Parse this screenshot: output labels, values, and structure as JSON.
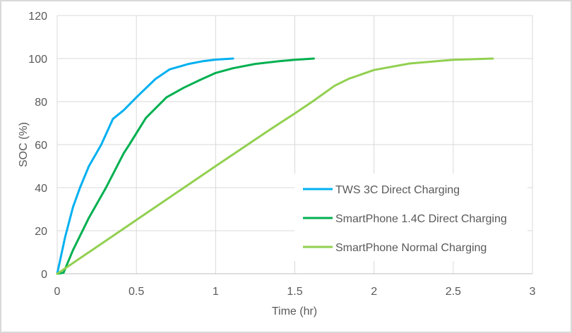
{
  "chart_data": {
    "type": "line",
    "title": "",
    "xlabel": "Time (hr)",
    "ylabel": "SOC (%)",
    "xlim": [
      0,
      3
    ],
    "ylim": [
      0,
      120
    ],
    "xticks": [
      0,
      0.5,
      1,
      1.5,
      2,
      2.5,
      3
    ],
    "xtick_labels": [
      "0",
      "0.5",
      "1",
      "1.5",
      "2",
      "2.5",
      "3"
    ],
    "yticks": [
      0,
      20,
      40,
      60,
      80,
      100,
      120
    ],
    "ytick_labels": [
      "0",
      "20",
      "40",
      "60",
      "80",
      "100",
      "120"
    ],
    "grid": true,
    "legend_position": "lower right (inside plot)",
    "series": [
      {
        "name": "TWS 3C Direct Charging",
        "color": "#00B0F0",
        "x": [
          0,
          0.05,
          0.1,
          0.144,
          0.2,
          0.278,
          0.352,
          0.42,
          0.5,
          0.62,
          0.71,
          0.83,
          0.92,
          1.0,
          1.11
        ],
        "y": [
          0,
          17,
          31,
          40,
          50,
          60,
          72,
          76,
          82,
          90.5,
          95,
          97.5,
          98.8,
          99.5,
          100
        ]
      },
      {
        "name": "SmartPhone 1.4C Direct Charging",
        "color": "#00B050",
        "x": [
          0,
          0.04,
          0.1,
          0.2,
          0.308,
          0.42,
          0.455,
          0.56,
          0.69,
          0.8,
          0.9,
          1.0,
          1.11,
          1.25,
          1.4,
          1.5,
          1.62
        ],
        "y": [
          0,
          0.5,
          11,
          26,
          40,
          56,
          60,
          72.4,
          82,
          86.5,
          90,
          93.3,
          95.5,
          97.5,
          98.8,
          99.4,
          100
        ]
      },
      {
        "name": "SmartPhone Normal Charging",
        "color": "#92D050",
        "x": [
          0,
          0.5,
          1.0,
          1.333,
          1.5,
          1.615,
          1.75,
          1.84,
          2.0,
          2.225,
          2.5,
          2.75
        ],
        "y": [
          0,
          25,
          50,
          66.5,
          74.5,
          80.2,
          87.3,
          90.6,
          94.7,
          97.7,
          99.4,
          100
        ]
      }
    ]
  },
  "legend": {
    "items": [
      {
        "label": "TWS 3C Direct Charging",
        "color": "#00B0F0"
      },
      {
        "label": "SmartPhone 1.4C Direct Charging",
        "color": "#00B050"
      },
      {
        "label": "SmartPhone Normal Charging",
        "color": "#92D050"
      }
    ]
  },
  "axes": {
    "x_title": "Time (hr)",
    "y_title": "SOC (%)"
  },
  "style": {
    "gridline_color": "#d9d9d9",
    "axis_color": "#bfbfbf",
    "text_color": "#595959"
  }
}
